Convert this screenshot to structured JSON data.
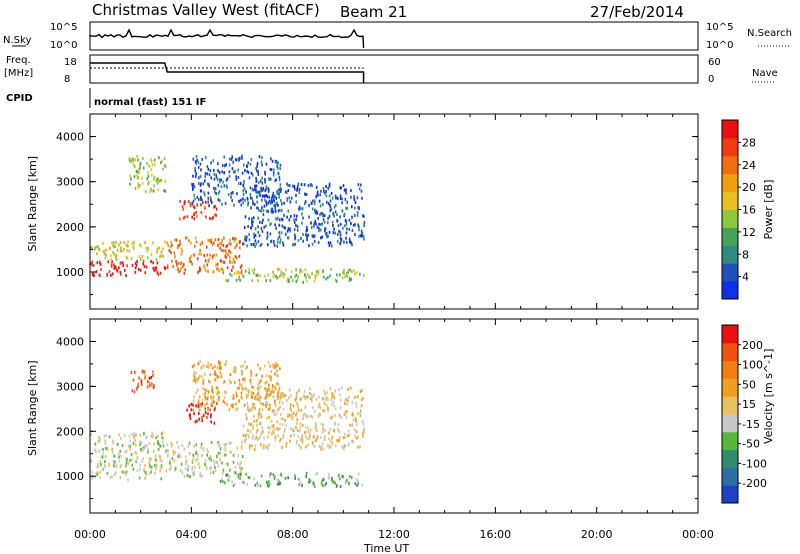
{
  "header": {
    "station": "Christmas Valley West (fitACF)",
    "beam": "Beam 21",
    "date": "27/Feb/2014"
  },
  "strip_labels": {
    "nsky": "N.Sky",
    "nsearch": "N.Search",
    "freq": "Freq.",
    "freq_unit": "[MHz]",
    "nave": "Nave",
    "cpid": "CPID",
    "cpid_value": "normal (fast) 151 IF"
  },
  "noise_ticks": {
    "top": "10^5",
    "bottom": "10^0"
  },
  "freq_ticks": {
    "top": "18",
    "bottom": "8"
  },
  "nave_ticks": {
    "top": "60",
    "bottom": "0"
  },
  "chart_data": [
    {
      "type": "heatmap",
      "name_label": "Power",
      "colorbar_label": "Power [dB]",
      "ylabel": "Slant Range [km]",
      "xlabel": "Time UT",
      "x_ticks": [
        "00:00",
        "04:00",
        "08:00",
        "12:00",
        "16:00",
        "20:00",
        "00:00"
      ],
      "y_ticks": [
        1000,
        2000,
        3000,
        4000
      ],
      "ylim": [
        180,
        4500
      ],
      "xlim_hours": [
        0,
        24
      ],
      "colorbar_ticks": [
        "4",
        "8",
        "12",
        "16",
        "20",
        "24",
        "28"
      ],
      "colorbar_colors": [
        "#1030e8",
        "#1f4fb8",
        "#2f8a82",
        "#47a35a",
        "#8cc83c",
        "#e8c020",
        "#f0a010",
        "#f07010",
        "#f03c14",
        "#e81010"
      ],
      "data_end_hour": 10.8,
      "regions": [
        {
          "t": [
            0.0,
            3.0
          ],
          "r": [
            950,
            1300
          ],
          "level": 9
        },
        {
          "t": [
            0.0,
            3.0
          ],
          "r": [
            1300,
            1700
          ],
          "level": 5
        },
        {
          "t": [
            1.5,
            3.0
          ],
          "r": [
            2800,
            3600
          ],
          "level": 4
        },
        {
          "t": [
            3.0,
            6.0
          ],
          "r": [
            1000,
            1800
          ],
          "level": 7
        },
        {
          "t": [
            3.5,
            5.0
          ],
          "r": [
            2200,
            2600
          ],
          "level": 8
        },
        {
          "t": [
            4.0,
            7.5
          ],
          "r": [
            2500,
            3600
          ],
          "level": 1
        },
        {
          "t": [
            5.0,
            10.8
          ],
          "r": [
            800,
            1100
          ],
          "level": 4
        },
        {
          "t": [
            6.0,
            10.8
          ],
          "r": [
            1600,
            3000
          ],
          "level": 1
        }
      ]
    },
    {
      "type": "heatmap",
      "name_label": "Velocity",
      "colorbar_label": "Velocity [m s^-1]",
      "ylabel": "Slant Range [km]",
      "xlabel": "Time UT",
      "x_ticks": [
        "00:00",
        "04:00",
        "08:00",
        "12:00",
        "16:00",
        "20:00",
        "00:00"
      ],
      "y_ticks": [
        1000,
        2000,
        3000,
        4000
      ],
      "ylim": [
        180,
        4500
      ],
      "xlim_hours": [
        0,
        24
      ],
      "colorbar_ticks": [
        "200",
        "100",
        "50",
        "15",
        "-15",
        "-50",
        "-100",
        "-200"
      ],
      "colorbar_colors": [
        "#2040c8",
        "#2e6ea6",
        "#2f8c6e",
        "#58b83a",
        "#c8c8c8",
        "#e8c060",
        "#f0a020",
        "#f08010",
        "#f05010",
        "#e81010"
      ],
      "data_end_hour": 10.8,
      "regions": [
        {
          "t": [
            0.0,
            3.0
          ],
          "r": [
            950,
            2000
          ],
          "level": 4
        },
        {
          "t": [
            1.5,
            2.5
          ],
          "r": [
            2900,
            3400
          ],
          "level": 8
        },
        {
          "t": [
            3.0,
            6.0
          ],
          "r": [
            1000,
            1800
          ],
          "level": 4
        },
        {
          "t": [
            3.8,
            5.0
          ],
          "r": [
            2200,
            2700
          ],
          "level": 9
        },
        {
          "t": [
            4.0,
            7.5
          ],
          "r": [
            2500,
            3600
          ],
          "level": 6
        },
        {
          "t": [
            5.0,
            10.8
          ],
          "r": [
            800,
            1100
          ],
          "level": 3
        },
        {
          "t": [
            6.0,
            10.8
          ],
          "r": [
            1600,
            3000
          ],
          "level": 5
        }
      ]
    }
  ]
}
